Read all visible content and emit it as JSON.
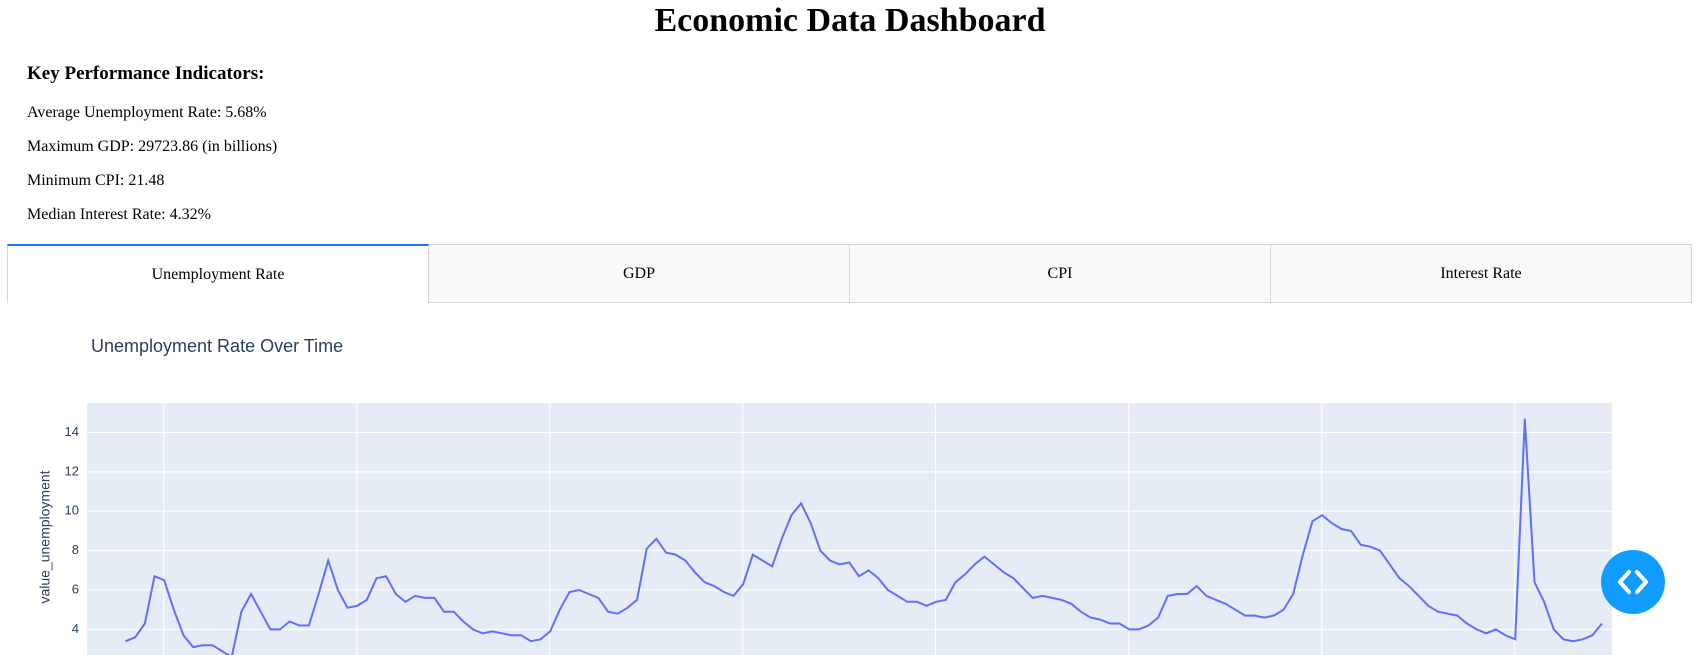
{
  "header": {
    "title": "Economic Data Dashboard"
  },
  "kpis": {
    "heading": "Key Performance Indicators:",
    "items": [
      "Average Unemployment Rate: 5.68%",
      "Maximum GDP: 29723.86 (in billions)",
      "Minimum CPI: 21.48",
      "Median Interest Rate: 4.32%"
    ]
  },
  "tabs": [
    "Unemployment Rate",
    "GDP",
    "CPI",
    "Interest Rate"
  ],
  "chart_data": {
    "type": "line",
    "title": "Unemployment Rate Over Time",
    "y_label": "value_unemployment",
    "color": "#636efa",
    "ylim": [
      2.7,
      15.5
    ],
    "yticks": [
      4,
      6,
      8,
      10,
      12,
      14
    ],
    "grid": true,
    "values": [
      3.4,
      3.6,
      4.3,
      6.7,
      6.5,
      5.0,
      3.7,
      3.1,
      3.2,
      3.2,
      2.9,
      2.6,
      4.9,
      5.8,
      4.9,
      4.0,
      4.0,
      4.4,
      4.2,
      4.2,
      5.8,
      7.5,
      6.0,
      5.1,
      5.2,
      5.5,
      6.6,
      6.7,
      5.8,
      5.4,
      5.7,
      5.6,
      5.6,
      4.9,
      4.9,
      4.4,
      4.0,
      3.8,
      3.9,
      3.8,
      3.7,
      3.7,
      3.4,
      3.5,
      3.9,
      5.0,
      5.9,
      6.0,
      5.8,
      5.6,
      4.9,
      4.8,
      5.1,
      5.5,
      8.1,
      8.6,
      7.9,
      7.8,
      7.5,
      6.9,
      6.4,
      6.2,
      5.9,
      5.7,
      6.3,
      7.8,
      7.5,
      7.2,
      8.6,
      9.8,
      10.4,
      9.4,
      8.0,
      7.5,
      7.3,
      7.4,
      6.7,
      7.0,
      6.6,
      6.0,
      5.7,
      5.4,
      5.4,
      5.2,
      5.4,
      5.5,
      6.4,
      6.8,
      7.3,
      7.7,
      7.3,
      6.9,
      6.6,
      6.1,
      5.6,
      5.7,
      5.6,
      5.5,
      5.3,
      4.9,
      4.6,
      4.5,
      4.3,
      4.3,
      4.0,
      4.0,
      4.2,
      4.6,
      5.7,
      5.8,
      5.8,
      6.2,
      5.7,
      5.5,
      5.3,
      5.0,
      4.7,
      4.7,
      4.6,
      4.7,
      5.0,
      5.8,
      7.8,
      9.5,
      9.8,
      9.4,
      9.1,
      9.0,
      8.3,
      8.2,
      8.0,
      7.3,
      6.6,
      6.2,
      5.7,
      5.2,
      4.9,
      4.8,
      4.7,
      4.3,
      4.0,
      3.8,
      4.0,
      3.7,
      3.5,
      14.7,
      6.4,
      5.4,
      4.0,
      3.5,
      3.4,
      3.5,
      3.7,
      4.3
    ]
  }
}
